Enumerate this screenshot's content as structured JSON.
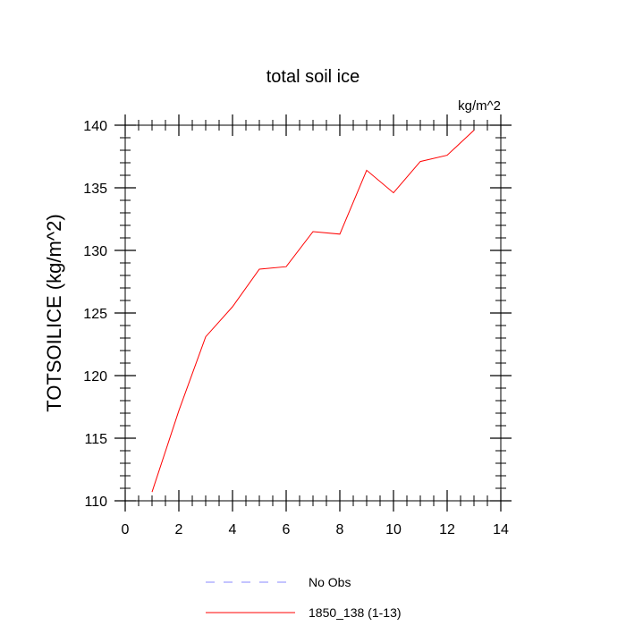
{
  "chart_data": {
    "type": "line",
    "title": "total soil ice",
    "units_label": "kg/m^2",
    "ylabel": "TOTSOILICE  (kg/m^2)",
    "xlabel": "",
    "xlim": [
      0,
      14
    ],
    "ylim": [
      110,
      140
    ],
    "x_ticks": [
      0,
      2,
      4,
      6,
      8,
      10,
      12,
      14
    ],
    "y_ticks": [
      110,
      115,
      120,
      125,
      130,
      135,
      140
    ],
    "grid": false,
    "legend_position": "bottom",
    "series": [
      {
        "name": "1850_138 (1-13)",
        "color": "#ff0000",
        "style": "solid",
        "x": [
          1,
          2,
          3,
          4,
          5,
          6,
          7,
          8,
          9,
          10,
          11,
          12,
          13
        ],
        "y": [
          110.7,
          117.2,
          123.1,
          125.5,
          128.5,
          128.7,
          131.5,
          131.3,
          136.4,
          134.6,
          137.1,
          137.6,
          139.6
        ]
      }
    ],
    "legend": [
      {
        "label": "No Obs",
        "color": "#8888ff",
        "style": "dashed"
      },
      {
        "label": "1850_138 (1-13)",
        "color": "#ff0000",
        "style": "solid"
      }
    ]
  }
}
